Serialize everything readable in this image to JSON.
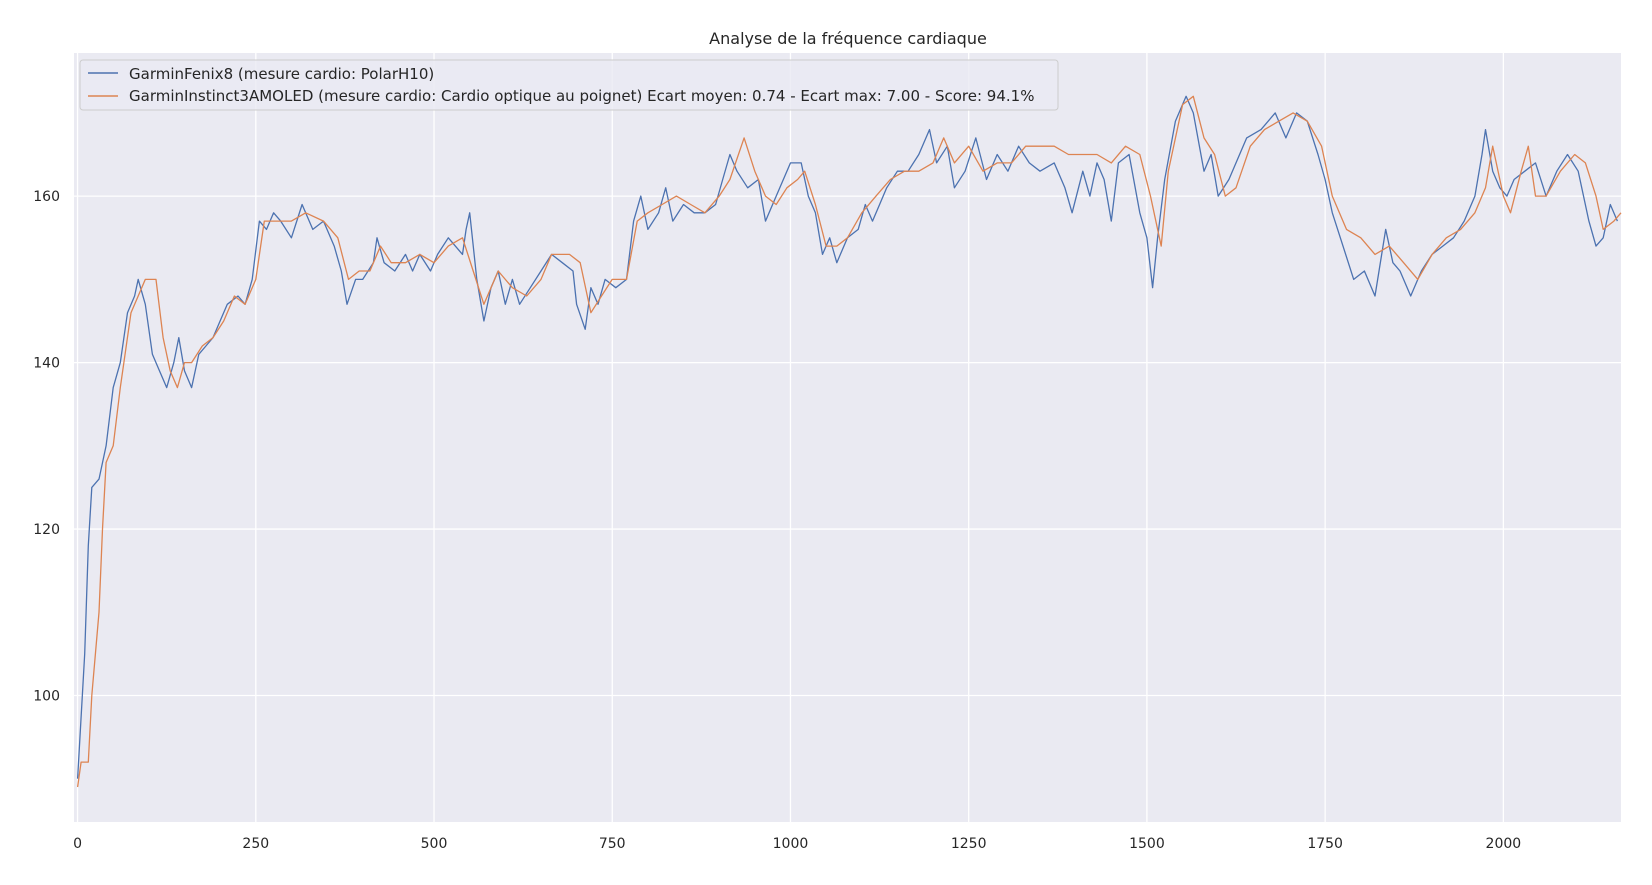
{
  "chart_data": {
    "type": "line",
    "title": "Analyse de la fréquence cardiaque",
    "xlabel": "",
    "ylabel": "",
    "xlim": [
      -5,
      2165
    ],
    "ylim": [
      84.8,
      177.2
    ],
    "xticks": [
      0,
      250,
      500,
      750,
      1000,
      1250,
      1500,
      1750,
      2000
    ],
    "yticks": [
      100,
      120,
      140,
      160
    ],
    "grid": true,
    "legend_position": "top-left",
    "series": [
      {
        "name": "GarminFenix8 (mesure cardio: PolarH10)",
        "color": "#4c72b0",
        "points": [
          [
            0,
            90
          ],
          [
            10,
            105
          ],
          [
            15,
            118
          ],
          [
            20,
            125
          ],
          [
            30,
            126
          ],
          [
            40,
            130
          ],
          [
            50,
            137
          ],
          [
            60,
            140
          ],
          [
            70,
            146
          ],
          [
            80,
            148
          ],
          [
            85,
            150
          ],
          [
            95,
            147
          ],
          [
            105,
            141
          ],
          [
            115,
            139
          ],
          [
            125,
            137
          ],
          [
            135,
            140
          ],
          [
            142,
            143
          ],
          [
            150,
            139
          ],
          [
            160,
            137
          ],
          [
            170,
            141
          ],
          [
            180,
            142
          ],
          [
            190,
            143
          ],
          [
            200,
            145
          ],
          [
            210,
            147
          ],
          [
            225,
            148
          ],
          [
            235,
            147
          ],
          [
            245,
            150
          ],
          [
            255,
            157
          ],
          [
            265,
            156
          ],
          [
            275,
            158
          ],
          [
            285,
            157
          ],
          [
            300,
            155
          ],
          [
            315,
            159
          ],
          [
            330,
            156
          ],
          [
            345,
            157
          ],
          [
            360,
            154
          ],
          [
            370,
            151
          ],
          [
            378,
            147
          ],
          [
            390,
            150
          ],
          [
            400,
            150
          ],
          [
            415,
            152
          ],
          [
            420,
            155
          ],
          [
            430,
            152
          ],
          [
            445,
            151
          ],
          [
            460,
            153
          ],
          [
            470,
            151
          ],
          [
            480,
            153
          ],
          [
            495,
            151
          ],
          [
            505,
            153
          ],
          [
            520,
            155
          ],
          [
            540,
            153
          ],
          [
            545,
            156
          ],
          [
            550,
            158
          ],
          [
            560,
            150
          ],
          [
            570,
            145
          ],
          [
            580,
            149
          ],
          [
            590,
            151
          ],
          [
            600,
            147
          ],
          [
            610,
            150
          ],
          [
            620,
            147
          ],
          [
            635,
            149
          ],
          [
            650,
            151
          ],
          [
            665,
            153
          ],
          [
            680,
            152
          ],
          [
            695,
            151
          ],
          [
            700,
            147
          ],
          [
            712,
            144
          ],
          [
            720,
            149
          ],
          [
            730,
            147
          ],
          [
            740,
            150
          ],
          [
            755,
            149
          ],
          [
            770,
            150
          ],
          [
            780,
            157
          ],
          [
            790,
            160
          ],
          [
            800,
            156
          ],
          [
            815,
            158
          ],
          [
            825,
            161
          ],
          [
            835,
            157
          ],
          [
            850,
            159
          ],
          [
            865,
            158
          ],
          [
            880,
            158
          ],
          [
            895,
            159
          ],
          [
            905,
            162
          ],
          [
            915,
            165
          ],
          [
            925,
            163
          ],
          [
            940,
            161
          ],
          [
            955,
            162
          ],
          [
            965,
            157
          ],
          [
            975,
            159
          ],
          [
            985,
            161
          ],
          [
            1000,
            164
          ],
          [
            1015,
            164
          ],
          [
            1025,
            160
          ],
          [
            1035,
            158
          ],
          [
            1045,
            153
          ],
          [
            1055,
            155
          ],
          [
            1065,
            152
          ],
          [
            1080,
            155
          ],
          [
            1095,
            156
          ],
          [
            1105,
            159
          ],
          [
            1115,
            157
          ],
          [
            1125,
            159
          ],
          [
            1135,
            161
          ],
          [
            1150,
            163
          ],
          [
            1165,
            163
          ],
          [
            1180,
            165
          ],
          [
            1195,
            168
          ],
          [
            1205,
            164
          ],
          [
            1220,
            166
          ],
          [
            1230,
            161
          ],
          [
            1245,
            163
          ],
          [
            1260,
            167
          ],
          [
            1275,
            162
          ],
          [
            1290,
            165
          ],
          [
            1305,
            163
          ],
          [
            1320,
            166
          ],
          [
            1335,
            164
          ],
          [
            1350,
            163
          ],
          [
            1370,
            164
          ],
          [
            1385,
            161
          ],
          [
            1395,
            158
          ],
          [
            1410,
            163
          ],
          [
            1420,
            160
          ],
          [
            1430,
            164
          ],
          [
            1440,
            162
          ],
          [
            1450,
            157
          ],
          [
            1460,
            164
          ],
          [
            1475,
            165
          ],
          [
            1490,
            158
          ],
          [
            1500,
            155
          ],
          [
            1508,
            149
          ],
          [
            1515,
            155
          ],
          [
            1525,
            162
          ],
          [
            1540,
            169
          ],
          [
            1555,
            172
          ],
          [
            1565,
            170
          ],
          [
            1580,
            163
          ],
          [
            1590,
            165
          ],
          [
            1600,
            160
          ],
          [
            1615,
            162
          ],
          [
            1625,
            164
          ],
          [
            1640,
            167
          ],
          [
            1660,
            168
          ],
          [
            1680,
            170
          ],
          [
            1695,
            167
          ],
          [
            1710,
            170
          ],
          [
            1725,
            169
          ],
          [
            1740,
            165
          ],
          [
            1750,
            162
          ],
          [
            1760,
            158
          ],
          [
            1775,
            154
          ],
          [
            1790,
            150
          ],
          [
            1805,
            151
          ],
          [
            1820,
            148
          ],
          [
            1835,
            156
          ],
          [
            1845,
            152
          ],
          [
            1855,
            151
          ],
          [
            1870,
            148
          ],
          [
            1885,
            151
          ],
          [
            1900,
            153
          ],
          [
            1915,
            154
          ],
          [
            1930,
            155
          ],
          [
            1945,
            157
          ],
          [
            1960,
            160
          ],
          [
            1970,
            165
          ],
          [
            1975,
            168
          ],
          [
            1985,
            163
          ],
          [
            1995,
            161
          ],
          [
            2005,
            160
          ],
          [
            2015,
            162
          ],
          [
            2030,
            163
          ],
          [
            2045,
            164
          ],
          [
            2060,
            160
          ],
          [
            2075,
            163
          ],
          [
            2090,
            165
          ],
          [
            2105,
            163
          ],
          [
            2120,
            157
          ],
          [
            2130,
            154
          ],
          [
            2140,
            155
          ],
          [
            2150,
            159
          ],
          [
            2160,
            157
          ]
        ]
      },
      {
        "name": "GarminInstinct3AMOLED (mesure cardio: Cardio optique au poignet) Ecart moyen: 0.74 - Ecart max: 7.00 - Score: 94.1%",
        "color": "#dd8452",
        "points": [
          [
            0,
            89
          ],
          [
            5,
            92
          ],
          [
            15,
            92
          ],
          [
            20,
            100
          ],
          [
            30,
            110
          ],
          [
            35,
            120
          ],
          [
            40,
            128
          ],
          [
            50,
            130
          ],
          [
            60,
            137
          ],
          [
            75,
            146
          ],
          [
            85,
            148
          ],
          [
            95,
            150
          ],
          [
            110,
            150
          ],
          [
            120,
            143
          ],
          [
            130,
            139
          ],
          [
            140,
            137
          ],
          [
            150,
            140
          ],
          [
            160,
            140
          ],
          [
            175,
            142
          ],
          [
            190,
            143
          ],
          [
            205,
            145
          ],
          [
            220,
            148
          ],
          [
            235,
            147
          ],
          [
            250,
            150
          ],
          [
            262,
            157
          ],
          [
            280,
            157
          ],
          [
            300,
            157
          ],
          [
            320,
            158
          ],
          [
            345,
            157
          ],
          [
            365,
            155
          ],
          [
            380,
            150
          ],
          [
            395,
            151
          ],
          [
            410,
            151
          ],
          [
            425,
            154
          ],
          [
            440,
            152
          ],
          [
            460,
            152
          ],
          [
            480,
            153
          ],
          [
            500,
            152
          ],
          [
            520,
            154
          ],
          [
            540,
            155
          ],
          [
            555,
            151
          ],
          [
            570,
            147
          ],
          [
            590,
            151
          ],
          [
            610,
            149
          ],
          [
            630,
            148
          ],
          [
            650,
            150
          ],
          [
            665,
            153
          ],
          [
            690,
            153
          ],
          [
            705,
            152
          ],
          [
            720,
            146
          ],
          [
            735,
            148
          ],
          [
            750,
            150
          ],
          [
            770,
            150
          ],
          [
            785,
            157
          ],
          [
            800,
            158
          ],
          [
            820,
            159
          ],
          [
            840,
            160
          ],
          [
            860,
            159
          ],
          [
            880,
            158
          ],
          [
            900,
            160
          ],
          [
            915,
            162
          ],
          [
            935,
            167
          ],
          [
            950,
            163
          ],
          [
            965,
            160
          ],
          [
            980,
            159
          ],
          [
            995,
            161
          ],
          [
            1010,
            162
          ],
          [
            1020,
            163
          ],
          [
            1035,
            159
          ],
          [
            1050,
            154
          ],
          [
            1065,
            154
          ],
          [
            1080,
            155
          ],
          [
            1100,
            158
          ],
          [
            1120,
            160
          ],
          [
            1140,
            162
          ],
          [
            1160,
            163
          ],
          [
            1180,
            163
          ],
          [
            1200,
            164
          ],
          [
            1215,
            167
          ],
          [
            1230,
            164
          ],
          [
            1250,
            166
          ],
          [
            1270,
            163
          ],
          [
            1290,
            164
          ],
          [
            1310,
            164
          ],
          [
            1330,
            166
          ],
          [
            1350,
            166
          ],
          [
            1370,
            166
          ],
          [
            1390,
            165
          ],
          [
            1410,
            165
          ],
          [
            1430,
            165
          ],
          [
            1450,
            164
          ],
          [
            1470,
            166
          ],
          [
            1490,
            165
          ],
          [
            1505,
            160
          ],
          [
            1520,
            154
          ],
          [
            1530,
            163
          ],
          [
            1550,
            171
          ],
          [
            1565,
            172
          ],
          [
            1580,
            167
          ],
          [
            1595,
            165
          ],
          [
            1610,
            160
          ],
          [
            1625,
            161
          ],
          [
            1645,
            166
          ],
          [
            1665,
            168
          ],
          [
            1685,
            169
          ],
          [
            1705,
            170
          ],
          [
            1725,
            169
          ],
          [
            1745,
            166
          ],
          [
            1760,
            160
          ],
          [
            1780,
            156
          ],
          [
            1800,
            155
          ],
          [
            1820,
            153
          ],
          [
            1840,
            154
          ],
          [
            1860,
            152
          ],
          [
            1880,
            150
          ],
          [
            1900,
            153
          ],
          [
            1920,
            155
          ],
          [
            1940,
            156
          ],
          [
            1960,
            158
          ],
          [
            1975,
            161
          ],
          [
            1985,
            166
          ],
          [
            2000,
            160
          ],
          [
            2010,
            158
          ],
          [
            2025,
            163
          ],
          [
            2035,
            166
          ],
          [
            2045,
            160
          ],
          [
            2060,
            160
          ],
          [
            2080,
            163
          ],
          [
            2100,
            165
          ],
          [
            2115,
            164
          ],
          [
            2130,
            160
          ],
          [
            2140,
            156
          ],
          [
            2155,
            157
          ],
          [
            2165,
            158
          ]
        ]
      }
    ]
  }
}
